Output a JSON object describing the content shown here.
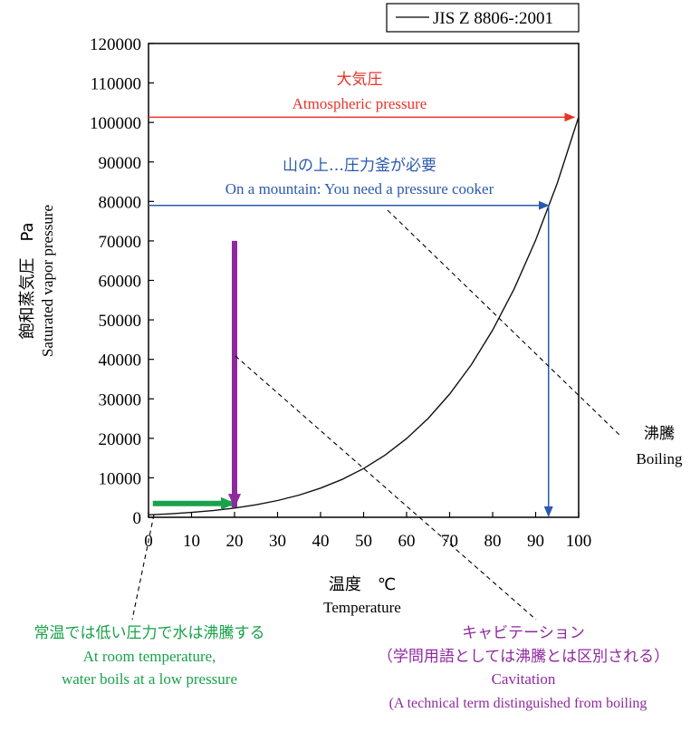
{
  "chart_data": {
    "type": "line",
    "legend": {
      "label": "JIS Z 8806-:2001",
      "placement": "top-right"
    },
    "xlabel": {
      "ja": "温度　℃",
      "en": "Temperature"
    },
    "ylabel": {
      "ja": "飽和蒸気圧　Pa",
      "en": "Saturated vapor pressure"
    },
    "xlim": [
      0,
      100
    ],
    "ylim": [
      0,
      120000
    ],
    "xticks": [
      0,
      10,
      20,
      30,
      40,
      50,
      60,
      70,
      80,
      90,
      100
    ],
    "yticks": [
      0,
      10000,
      20000,
      30000,
      40000,
      50000,
      60000,
      70000,
      80000,
      90000,
      100000,
      110000,
      120000
    ],
    "ytick_labels": [
      "0",
      "10000",
      "20000",
      "30000",
      "40000",
      "50000",
      "60000",
      "70000",
      "80000",
      "90000",
      "100000",
      "110000",
      "120000"
    ],
    "series": [
      {
        "name": "JIS Z 8806-:2001",
        "x": [
          0,
          5,
          10,
          15,
          20,
          25,
          30,
          35,
          40,
          45,
          50,
          55,
          60,
          65,
          70,
          75,
          80,
          85,
          90,
          95,
          100
        ],
        "y": [
          611,
          872,
          1228,
          1705,
          2339,
          3169,
          4246,
          5628,
          7384,
          9593,
          12350,
          15760,
          19950,
          25040,
          31200,
          38580,
          47400,
          57870,
          70180,
          84550,
          101420
        ]
      }
    ],
    "annotations": {
      "atmospheric": {
        "ja": "大気圧",
        "en": "Atmospheric pressure",
        "color": "#e8342a",
        "y": 101325,
        "x_from": 0,
        "x_to": 99
      },
      "mountain": {
        "ja": "山の上…圧力釜が必要",
        "en": "On a mountain: You need a pressure cooker",
        "color": "#2a5aad",
        "y": 79000,
        "x_from": 0,
        "x_to": 93,
        "drop_x": 93
      },
      "boiling": {
        "ja": "沸騰",
        "en": "Boiling"
      },
      "room_temp": {
        "ja": "常温では低い圧力で水は沸騰する",
        "en1": "At room temperature,",
        "en2": "water boils at a low pressure",
        "color": "#19a24a",
        "y": 3500,
        "x_from": 1,
        "x_to": 20
      },
      "cavitation": {
        "ja1": "キャビテーション",
        "ja2": "（学問用語としては沸騰とは区別される）",
        "en1": "Cavitation",
        "en2": "(A technical term distinguished from boiling",
        "color": "#8e2a9e",
        "x": 20,
        "y_from": 70000,
        "y_to": 2500
      }
    }
  }
}
